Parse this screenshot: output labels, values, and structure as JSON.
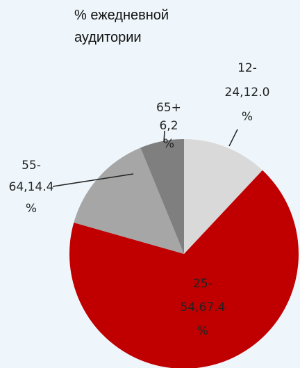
{
  "chart_data": {
    "type": "pie",
    "title": "% ежедневной аудитории",
    "categories": [
      "12-24",
      "25-54",
      "55-64",
      "65+"
    ],
    "values": [
      12.0,
      67.4,
      14.4,
      6.2
    ],
    "value_labels": [
      "12-24,12.0%",
      "25-54,67.4%",
      "55-64,14.4%",
      "65+ 6,2%"
    ],
    "colors": [
      "#d9d9d9",
      "#c00000",
      "#a6a6a6",
      "#7f7f7f"
    ]
  }
}
